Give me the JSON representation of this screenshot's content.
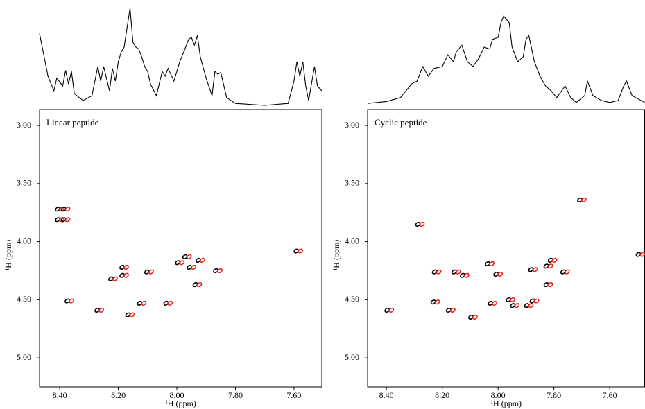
{
  "chart_data": [
    {
      "type": "scatter",
      "title": "Linear peptide",
      "xlabel": "¹H (ppm)",
      "ylabel": "¹H (ppm)",
      "xlim": [
        8.469,
        7.505
      ],
      "ylim": [
        2.862,
        5.25
      ],
      "xticks": [
        {
          "value": 8.4,
          "label": "8.40"
        },
        {
          "value": 8.2,
          "label": "8.20"
        },
        {
          "value": 8.0,
          "label": "8.00"
        },
        {
          "value": 7.8,
          "label": "7.80"
        },
        {
          "value": 7.6,
          "label": "7.60"
        }
      ],
      "yticks": [
        {
          "value": 3.0,
          "label": "3.00"
        },
        {
          "value": 3.5,
          "label": "3.50"
        },
        {
          "value": 4.0,
          "label": "4.00"
        },
        {
          "value": 4.5,
          "label": "4.50"
        },
        {
          "value": 5.0,
          "label": "5.00"
        }
      ],
      "x": [
        8.4,
        8.4,
        8.38,
        8.38,
        8.367,
        8.265,
        8.218,
        8.18,
        8.18,
        8.16,
        8.12,
        8.095,
        8.03,
        7.99,
        7.965,
        7.95,
        7.93,
        7.92,
        7.86,
        7.585
      ],
      "y": [
        3.72,
        3.81,
        3.72,
        3.81,
        4.51,
        4.59,
        4.32,
        4.22,
        4.29,
        4.63,
        4.53,
        4.26,
        4.53,
        4.18,
        4.13,
        4.22,
        4.37,
        4.16,
        4.25,
        4.08
      ],
      "colors": [
        "#000000",
        "#e8251f"
      ],
      "projection": {
        "type": "line",
        "color": "#000000",
        "ylim": [
          0,
          100
        ],
        "x": [
          8.469,
          8.44,
          8.42,
          8.41,
          8.39,
          8.38,
          8.37,
          8.36,
          8.35,
          8.32,
          8.29,
          8.27,
          8.26,
          8.25,
          8.23,
          8.22,
          8.21,
          8.2,
          8.19,
          8.18,
          8.17,
          8.16,
          8.15,
          8.14,
          8.13,
          8.12,
          8.11,
          8.1,
          8.09,
          8.07,
          8.05,
          8.04,
          8.03,
          8.01,
          7.99,
          7.97,
          7.96,
          7.95,
          7.94,
          7.93,
          7.92,
          7.9,
          7.88,
          7.87,
          7.86,
          7.85,
          7.83,
          7.8,
          7.7,
          7.62,
          7.6,
          7.59,
          7.58,
          7.57,
          7.56,
          7.55,
          7.53,
          7.52,
          7.505
        ],
        "values": [
          74,
          30,
          15,
          28,
          20,
          36,
          22,
          35,
          12,
          5,
          10,
          40,
          25,
          40,
          15,
          38,
          25,
          45,
          55,
          60,
          80,
          100,
          65,
          60,
          58,
          50,
          40,
          35,
          22,
          10,
          35,
          30,
          38,
          25,
          45,
          60,
          68,
          70,
          62,
          72,
          50,
          28,
          10,
          35,
          32,
          34,
          8,
          2,
          0,
          2,
          25,
          45,
          30,
          45,
          20,
          5,
          40,
          20,
          15
        ]
      }
    },
    {
      "type": "scatter",
      "title": "Cyclic peptide",
      "xlabel": "¹H (ppm)",
      "ylabel": "¹H (ppm)",
      "xlim": [
        8.4675,
        7.475
      ],
      "ylim": [
        2.862,
        5.25
      ],
      "xticks": [
        {
          "value": 8.4,
          "label": "8.40"
        },
        {
          "value": 8.2,
          "label": "8.20"
        },
        {
          "value": 8.0,
          "label": "8.00"
        },
        {
          "value": 7.8,
          "label": "7.80"
        },
        {
          "value": 7.6,
          "label": "7.60"
        }
      ],
      "yticks": [
        {
          "value": 3.0,
          "label": "3.00"
        },
        {
          "value": 3.5,
          "label": "3.50"
        },
        {
          "value": 4.0,
          "label": "4.00"
        },
        {
          "value": 4.5,
          "label": "4.50"
        },
        {
          "value": 5.0,
          "label": "5.00"
        }
      ],
      "x": [
        8.28,
        7.7,
        8.39,
        8.225,
        8.22,
        8.17,
        8.15,
        8.12,
        8.09,
        8.03,
        8.02,
        8.0,
        7.955,
        7.94,
        7.89,
        7.875,
        7.87,
        7.82,
        7.805,
        7.82,
        7.76,
        7.49
      ],
      "y": [
        3.85,
        3.64,
        4.59,
        4.52,
        4.26,
        4.59,
        4.26,
        4.29,
        4.65,
        4.19,
        4.53,
        4.28,
        4.5,
        4.55,
        4.55,
        4.24,
        4.51,
        4.21,
        4.16,
        4.37,
        4.26,
        4.11
      ],
      "colors": [
        "#000000",
        "#e8251f"
      ],
      "projection": {
        "type": "line",
        "color": "#000000",
        "ylim": [
          0,
          100
        ],
        "x": [
          8.4675,
          8.4,
          8.35,
          8.31,
          8.29,
          8.27,
          8.25,
          8.23,
          8.2,
          8.18,
          8.16,
          8.15,
          8.13,
          8.11,
          8.09,
          8.07,
          8.05,
          8.03,
          8.02,
          8.0,
          7.99,
          7.98,
          7.96,
          7.95,
          7.93,
          7.91,
          7.9,
          7.89,
          7.87,
          7.85,
          7.83,
          7.81,
          7.79,
          7.76,
          7.74,
          7.72,
          7.69,
          7.68,
          7.66,
          7.63,
          7.6,
          7.57,
          7.55,
          7.54,
          7.52,
          7.475
        ],
        "values": [
          2,
          4,
          8,
          22,
          25,
          40,
          30,
          38,
          40,
          52,
          45,
          55,
          62,
          45,
          40,
          48,
          60,
          58,
          68,
          70,
          85,
          92,
          85,
          60,
          45,
          50,
          68,
          72,
          45,
          30,
          20,
          15,
          8,
          20,
          8,
          3,
          10,
          25,
          10,
          5,
          3,
          5,
          20,
          25,
          10,
          3
        ]
      }
    }
  ]
}
